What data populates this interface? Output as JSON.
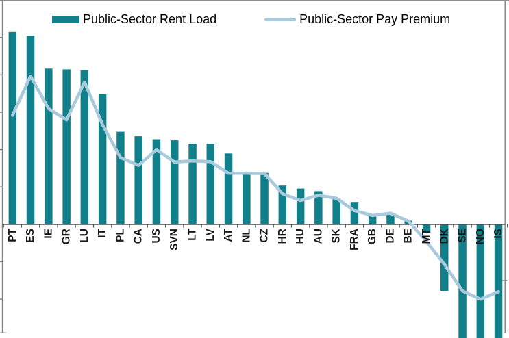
{
  "legend": {
    "rent_label": "Public-Sector Rent Load",
    "premium_label": "Public-Sector Pay Premium"
  },
  "colors": {
    "bar": "#11808A",
    "line": "#A8CADC",
    "axis": "#808080",
    "zero_line": "#4D4D4D",
    "label_text": "#1A1A1A"
  },
  "chart_data": {
    "type": "bar",
    "subtype": "bar-with-line-overlay",
    "title": "",
    "xlabel": "",
    "ylabel": "",
    "legend_position": "top",
    "grid": "off",
    "y_axis_note": "y-axis numeric labels are cropped out of the screenshot; only tick marks are visible. Values below are expressed in gridline units (1 unit = one tick interval). Visible axis range is approximately -3.0 to +6.0.",
    "ylim_visible": [
      -3.05,
      5.95
    ],
    "categories": [
      "PT",
      "ES",
      "IE",
      "GR",
      "LU",
      "IT",
      "PL",
      "CA",
      "US",
      "SVN",
      "LT",
      "LV",
      "AT",
      "NL",
      "CZ",
      "HR",
      "HU",
      "AU",
      "SK",
      "FRA",
      "GB",
      "DE",
      "BE",
      "MT",
      "DK",
      "SE",
      "NO",
      "IS"
    ],
    "series": [
      {
        "name": "Public-Sector Rent Load",
        "type": "bar",
        "values": [
          5.15,
          5.05,
          4.17,
          4.15,
          4.13,
          3.48,
          2.48,
          2.36,
          2.28,
          2.25,
          2.16,
          2.16,
          1.9,
          1.4,
          1.38,
          1.04,
          0.96,
          0.89,
          0.7,
          0.6,
          0.27,
          0.3,
          0.1,
          -0.22,
          -1.78,
          -3.2,
          -3.2,
          -3.2
        ]
      },
      {
        "name": "Public-Sector Pay Premium",
        "type": "line",
        "values": [
          2.92,
          3.97,
          3.1,
          2.8,
          3.81,
          2.67,
          1.79,
          1.58,
          2.0,
          1.67,
          1.7,
          1.68,
          1.37,
          1.37,
          1.36,
          0.82,
          0.64,
          0.78,
          0.7,
          0.37,
          0.24,
          0.3,
          0.09,
          -0.46,
          -1.07,
          -1.78,
          -2.0,
          -1.8
        ]
      }
    ],
    "bars_cut_off_at_bottom_edge": [
      "SE",
      "NO",
      "IS"
    ]
  }
}
